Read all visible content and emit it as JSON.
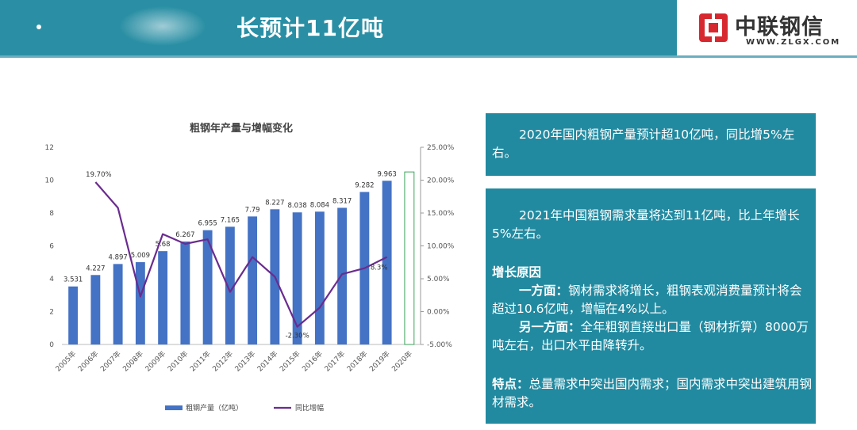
{
  "header": {
    "title": "长预计11亿吨",
    "bg_color": "#2a8fa4"
  },
  "logo": {
    "name": "中联钢信",
    "url": "WWW.ZLGX.COM",
    "mark_color": "#d7282f"
  },
  "chart_data": {
    "type": "bar+line",
    "title": "粗钢年产量与增幅变化",
    "categories": [
      "2005年",
      "2006年",
      "2007年",
      "2008年",
      "2009年",
      "2010年",
      "2011年",
      "2012年",
      "2013年",
      "2014年",
      "2015年",
      "2016年",
      "2017年",
      "2018年",
      "2019年",
      "2020年"
    ],
    "series": [
      {
        "name": "粗钢产量（亿吨）",
        "type": "bar",
        "axis": "left",
        "color": "#4472c4",
        "values": [
          3.531,
          4.227,
          4.897,
          5.009,
          5.68,
          6.267,
          6.955,
          7.165,
          7.79,
          8.227,
          8.038,
          8.084,
          8.317,
          9.282,
          9.963,
          null
        ],
        "labels": [
          "3.531",
          "4.227",
          "4.897",
          "5.009",
          "5.68",
          "6.267",
          "6.955",
          "7.165",
          "7.79",
          "8.227",
          "8.038",
          "8.084",
          "8.317",
          "9.282",
          "9.963",
          ""
        ]
      },
      {
        "name": "同比增幅",
        "type": "line",
        "axis": "right",
        "color": "#6a2c8e",
        "values": [
          null,
          19.7,
          15.8,
          2.3,
          11.8,
          10.3,
          11.0,
          3.0,
          8.3,
          5.3,
          -2.3,
          0.6,
          5.7,
          6.6,
          8.3,
          null
        ],
        "labels": [
          "",
          "19.70%",
          "",
          "",
          "",
          "",
          "",
          "",
          "",
          "",
          "-2.30%",
          "",
          "",
          "",
          "8.3%",
          ""
        ]
      }
    ],
    "left_axis": {
      "min": 0,
      "max": 12,
      "ticks": [
        "0",
        "2",
        "4",
        "6",
        "8",
        "10",
        "12"
      ]
    },
    "right_axis": {
      "min": -5,
      "max": 25,
      "ticks": [
        "-5.00%",
        "0.00%",
        "5.00%",
        "10.00%",
        "15.00%",
        "20.00%",
        "25.00%"
      ]
    },
    "forecast_outline_color": "#3aa35a",
    "legend_position": "bottom",
    "grid": false
  },
  "panel1": {
    "text": "2020年国内粗钢产量预计超10亿吨，同比增5%左右。"
  },
  "panel2": {
    "intro": "2021年中国粗钢需求量将达到11亿吨，比上年增长5%左右。",
    "reason_head": "增长原因",
    "reason1_head": "一方面：",
    "reason1_text": "钢材需求将增长，粗钢表观消费量预计将会超过10.6亿吨，增幅在4%以上。",
    "reason2_head": "另一方面：",
    "reason2_text": "全年粗钢直接出口量（钢材折算）8000万吨左右，出口水平由降转升。",
    "feature_head": "特点：",
    "feature_text": "总量需求中突出国内需求；国内需求中突出建筑用钢材需求。"
  },
  "panel_color": "#228aa0"
}
